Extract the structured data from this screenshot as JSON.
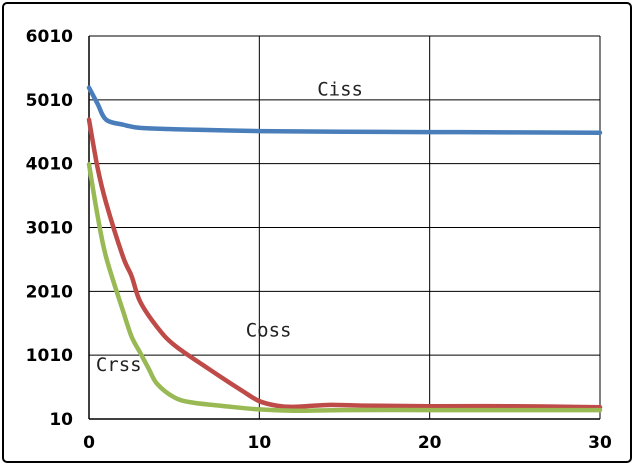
{
  "chart_data": {
    "type": "line",
    "title": "",
    "xlabel": "",
    "ylabel": "",
    "xlim": [
      0,
      30
    ],
    "ylim": [
      10,
      6010
    ],
    "x_ticks": [
      0,
      10,
      20,
      30
    ],
    "y_ticks": [
      10,
      1010,
      2010,
      3010,
      4010,
      5010,
      6010
    ],
    "grid": true,
    "series": [
      {
        "name": "Ciss",
        "color": "#4a7ebb",
        "points": [
          [
            0,
            5200
          ],
          [
            0.5,
            4950
          ],
          [
            1,
            4700
          ],
          [
            2,
            4620
          ],
          [
            3,
            4570
          ],
          [
            5,
            4550
          ],
          [
            10,
            4520
          ],
          [
            15,
            4510
          ],
          [
            20,
            4505
          ],
          [
            25,
            4500
          ],
          [
            30,
            4495
          ]
        ]
      },
      {
        "name": "Coss",
        "color": "#be4b48",
        "points": [
          [
            0,
            4700
          ],
          [
            0.5,
            3950
          ],
          [
            1,
            3400
          ],
          [
            2,
            2550
          ],
          [
            2.5,
            2250
          ],
          [
            3,
            1850
          ],
          [
            4,
            1450
          ],
          [
            5,
            1170
          ],
          [
            7,
            800
          ],
          [
            9,
            450
          ],
          [
            10,
            290
          ],
          [
            11,
            220
          ],
          [
            12,
            200
          ],
          [
            14,
            230
          ],
          [
            16,
            220
          ],
          [
            20,
            210
          ],
          [
            25,
            210
          ],
          [
            30,
            195
          ]
        ]
      },
      {
        "name": "Crss",
        "color": "#98b954",
        "points": [
          [
            0,
            4000
          ],
          [
            0.5,
            3200
          ],
          [
            1,
            2550
          ],
          [
            2,
            1700
          ],
          [
            2.5,
            1300
          ],
          [
            3,
            1050
          ],
          [
            3.5,
            800
          ],
          [
            4,
            560
          ],
          [
            5,
            350
          ],
          [
            6,
            270
          ],
          [
            8,
            210
          ],
          [
            10,
            160
          ],
          [
            12,
            140
          ],
          [
            15,
            150
          ],
          [
            20,
            150
          ],
          [
            25,
            150
          ],
          [
            30,
            150
          ]
        ]
      }
    ],
    "annotations": [
      {
        "text": "Ciss",
        "x": 13.4,
        "y": 5080
      },
      {
        "text": "Coss",
        "x": 9.2,
        "y": 1300
      },
      {
        "text": "Crss",
        "x": 0.4,
        "y": 760
      }
    ]
  }
}
